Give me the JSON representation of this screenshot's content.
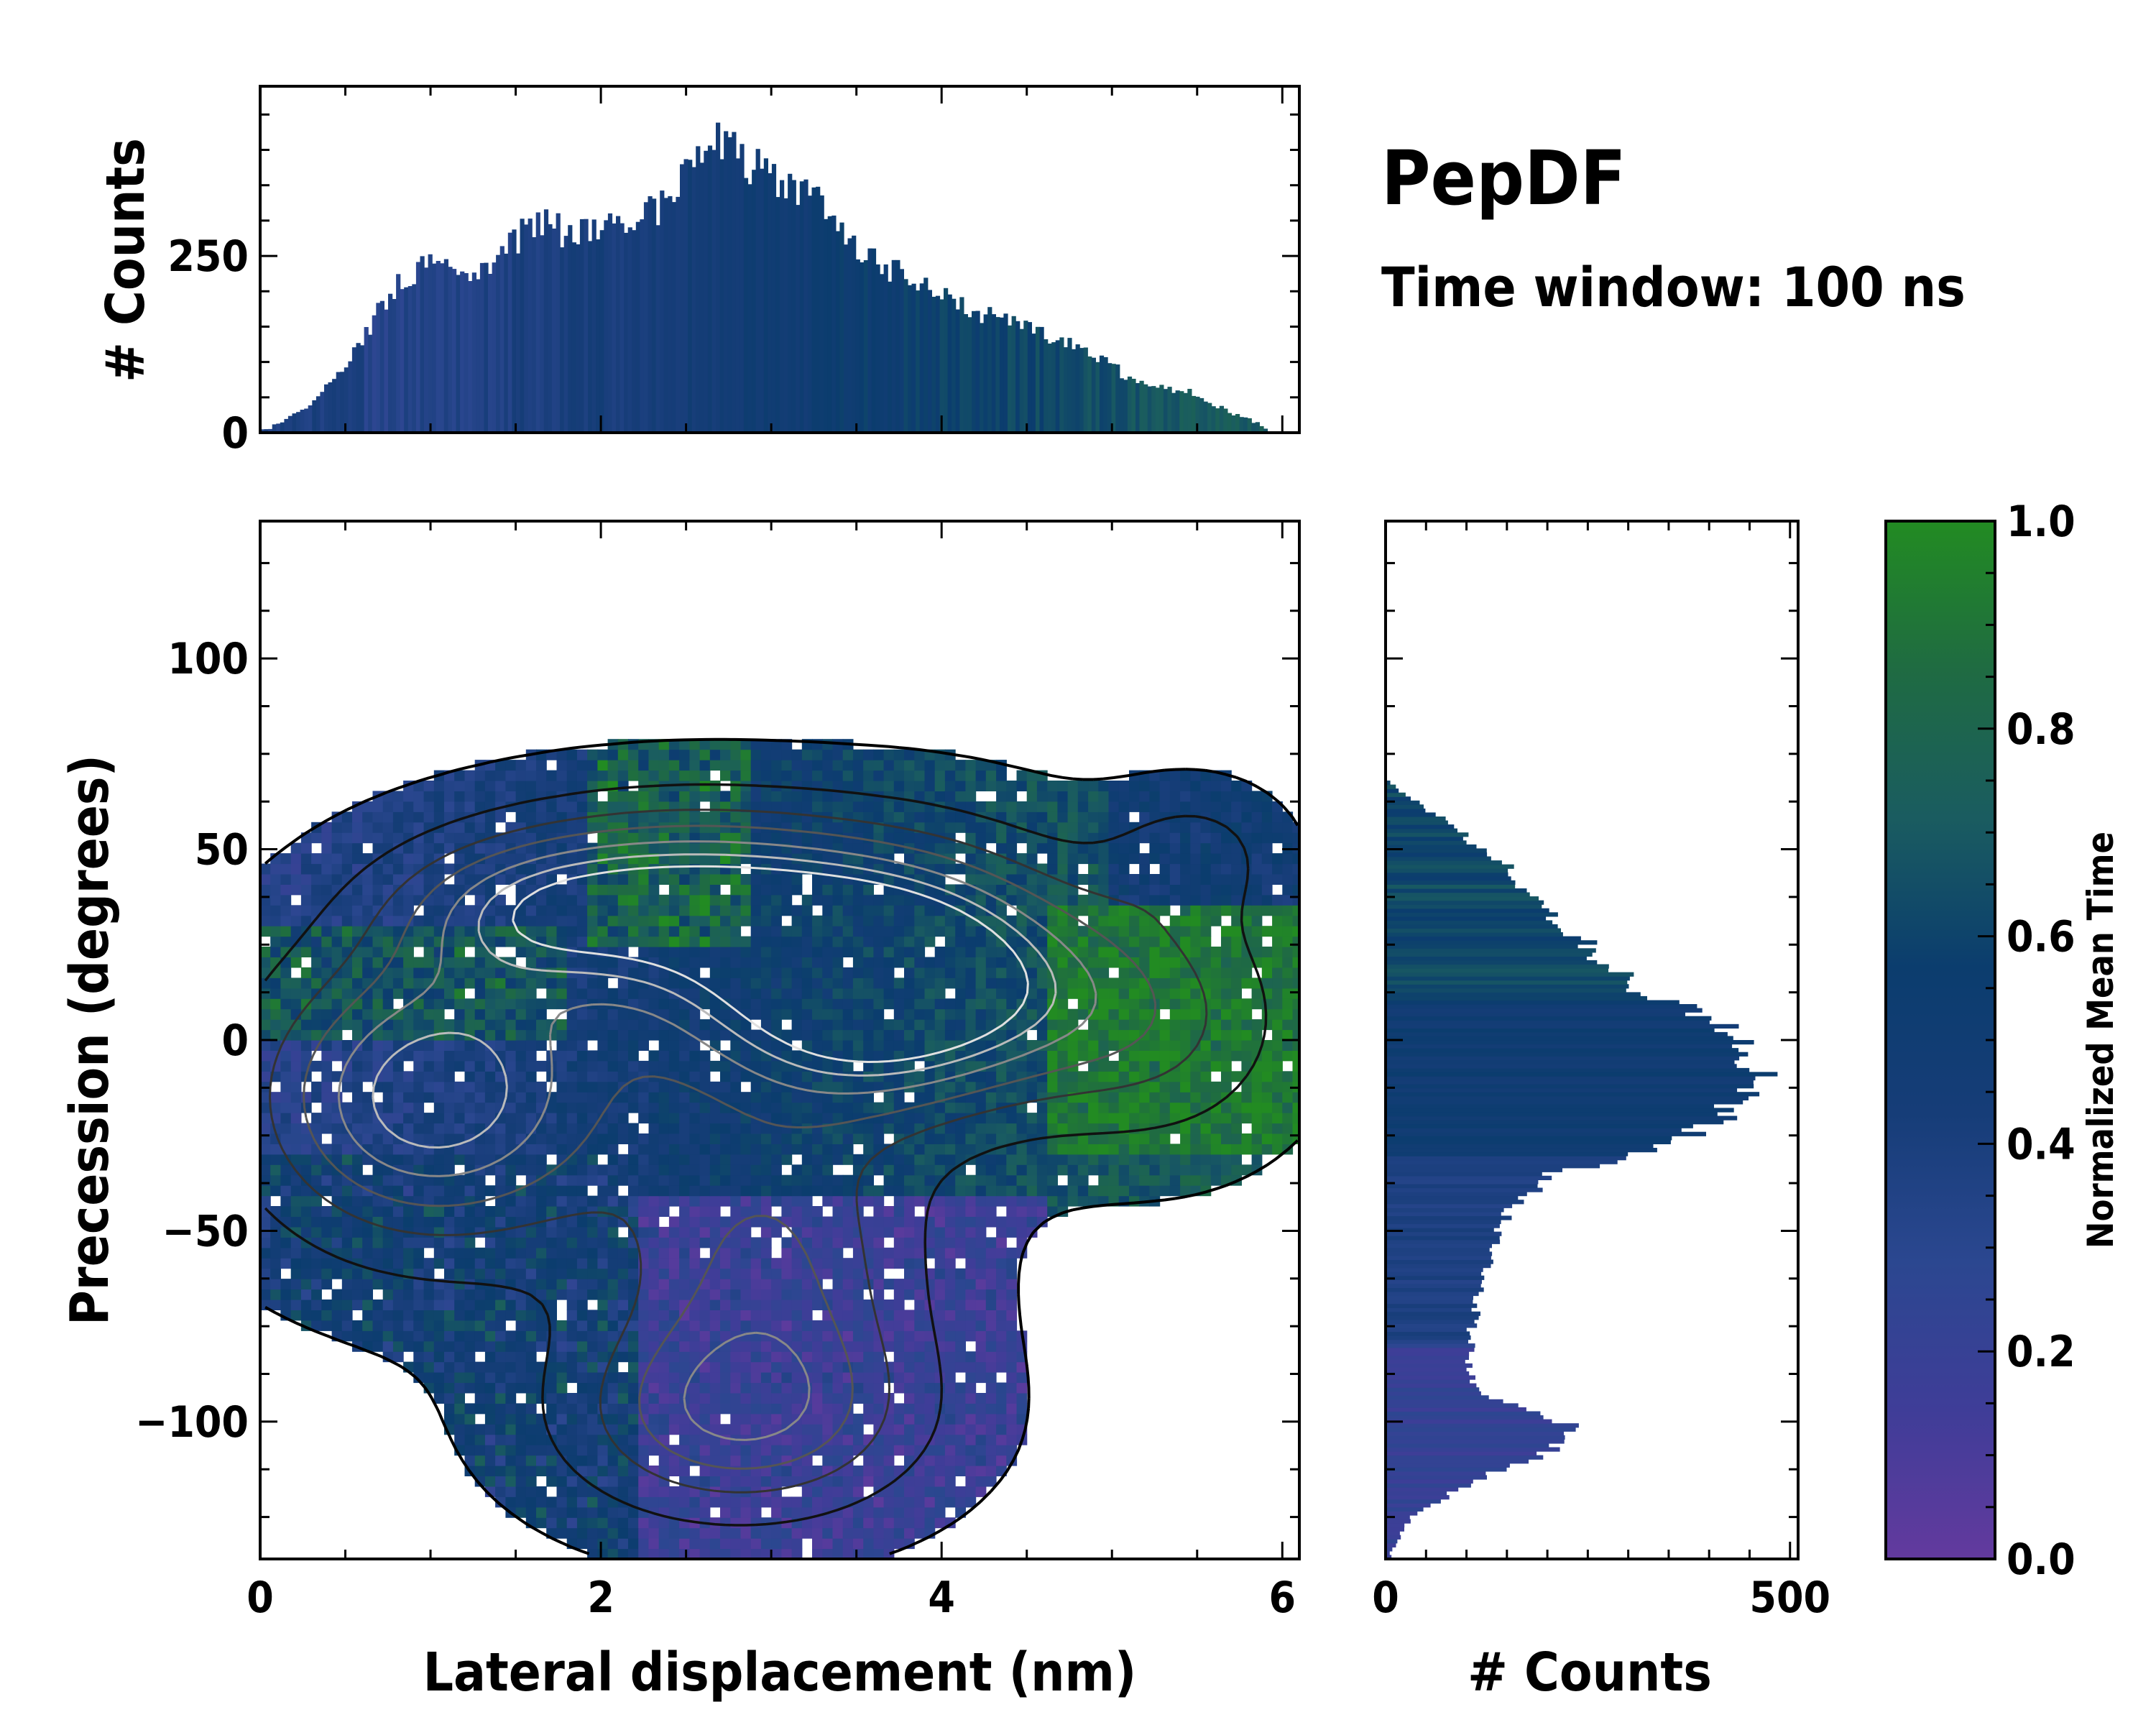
{
  "chart_data": {
    "type": "joint-histogram",
    "title": "PepDF",
    "subtitle": "Time window: 100 ns",
    "colormap": {
      "label": "Normalized Mean Time",
      "range": [
        0.0,
        1.0
      ],
      "ticks": [
        "0.0",
        "0.2",
        "0.4",
        "0.6",
        "0.8",
        "1.0"
      ],
      "stops": [
        "#633a9e",
        "#3f3d98",
        "#2b4790",
        "#163d78",
        "#0b3d6e",
        "#1a5c60",
        "#1f6b42",
        "#228b22"
      ]
    },
    "main": {
      "type": "2d-histogram-with-contours",
      "xlabel": "Lateral displacement (nm)",
      "ylabel": "Precession (degrees)",
      "xlim": [
        0,
        6.1
      ],
      "ylim": [
        -136,
        136
      ],
      "xticks": [
        "0",
        "2",
        "4",
        "6"
      ],
      "yticks": [
        "100",
        "50",
        "0",
        "−50",
        "−100"
      ]
    },
    "top_histogram": {
      "type": "bar",
      "ylabel": "# Counts",
      "yticks": [
        "0",
        "250"
      ],
      "ylim": [
        0,
        490
      ],
      "profile_x": [
        0,
        0.3,
        0.6,
        0.8,
        1.0,
        1.2,
        1.4,
        1.6,
        1.8,
        2.0,
        2.2,
        2.4,
        2.55,
        2.7,
        2.9,
        3.1,
        3.3,
        3.5,
        3.7,
        3.9,
        4.2,
        4.5,
        4.8,
        5.1,
        5.4,
        5.6,
        5.8,
        5.95
      ],
      "profile_counts": [
        0,
        40,
        130,
        210,
        240,
        220,
        250,
        295,
        285,
        290,
        300,
        330,
        400,
        410,
        375,
        350,
        330,
        260,
        230,
        210,
        170,
        150,
        120,
        80,
        60,
        40,
        20,
        0
      ]
    },
    "right_histogram": {
      "type": "barh",
      "xlabel": "# Counts",
      "xticks": [
        "0",
        "500"
      ],
      "xlim": [
        0,
        510
      ],
      "profile_y": [
        -136,
        -125,
        -115,
        -108,
        -102,
        -98,
        -92,
        -85,
        -75,
        -65,
        -55,
        -45,
        -35,
        -28,
        -20,
        -10,
        -5,
        5,
        15,
        25,
        35,
        45,
        55,
        62,
        68
      ],
      "profile_counts": [
        5,
        30,
        110,
        200,
        240,
        190,
        110,
        100,
        110,
        120,
        130,
        150,
        210,
        340,
        420,
        450,
        460,
        400,
        300,
        250,
        200,
        150,
        90,
        40,
        5
      ]
    }
  }
}
